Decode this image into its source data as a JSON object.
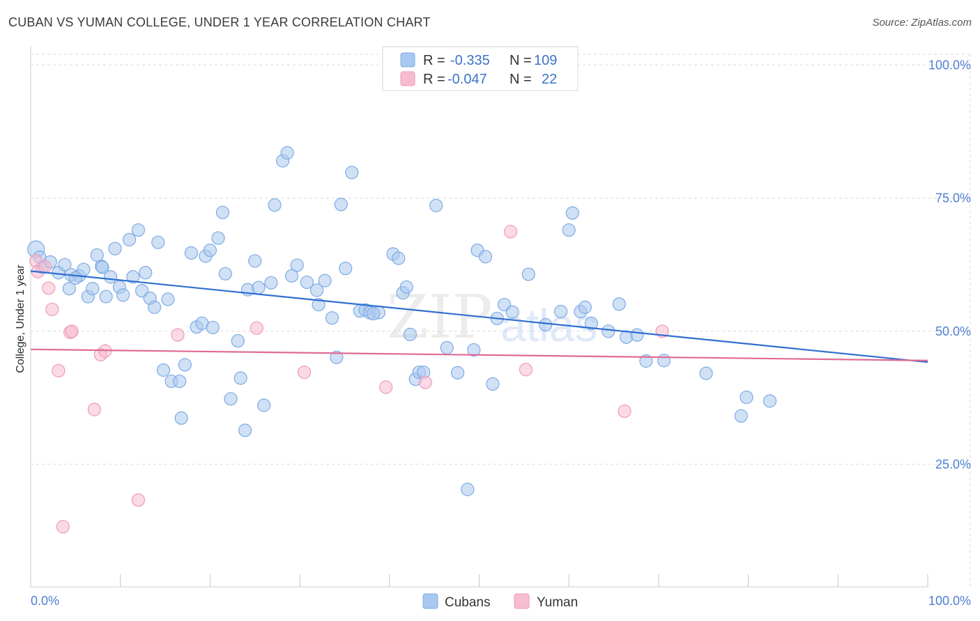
{
  "header": {
    "title": "CUBAN VS YUMAN COLLEGE, UNDER 1 YEAR CORRELATION CHART",
    "source": "Source: ZipAtlas.com"
  },
  "legend": {
    "rows": [
      {
        "r_label": "R =",
        "r_value": "-0.335",
        "n_label": "N =",
        "n_value": "109"
      },
      {
        "r_label": "R =",
        "r_value": "-0.047",
        "n_label": "N =",
        "n_value": "22"
      }
    ],
    "bottom": [
      "Cubans",
      "Yuman"
    ]
  },
  "watermark": {
    "zip": "ZIP",
    "atlas": "atlas"
  },
  "colors": {
    "blue_fill": "#a9c8ef",
    "blue_stroke": "#7eaae3",
    "blue_line": "#2f6fd0",
    "pink_fill": "#f7bcd0",
    "pink_stroke": "#ee9ab8",
    "pink_line": "#e06a94",
    "grid": "#d9d9d9",
    "tick_text": "#4f7fcf"
  },
  "chart_data": {
    "type": "scatter",
    "title": "CUBAN VS YUMAN COLLEGE, UNDER 1 YEAR CORRELATION CHART",
    "xlabel": "",
    "ylabel": "College, Under 1 year",
    "xlim": [
      0,
      100
    ],
    "ylim": [
      2,
      102
    ],
    "x_tick_labels": [
      "0.0%",
      "100.0%"
    ],
    "y_tick_labels": [
      "25.0%",
      "50.0%",
      "75.0%",
      "100.0%"
    ],
    "y_ticks": [
      25,
      50,
      75,
      100
    ],
    "grid": true,
    "series": [
      {
        "name": "Cubans",
        "color": "#a9c8ef",
        "trend": {
          "x": [
            0,
            100
          ],
          "y": [
            61.3,
            44.2
          ]
        },
        "points": [
          [
            0.6,
            65.4
          ],
          [
            1.0,
            63.9
          ],
          [
            1.3,
            62.0
          ],
          [
            2.2,
            63.0
          ],
          [
            3.1,
            61.0
          ],
          [
            3.8,
            62.5
          ],
          [
            4.3,
            58.0
          ],
          [
            4.5,
            60.6
          ],
          [
            5.4,
            60.4
          ],
          [
            5.9,
            61.6
          ],
          [
            6.4,
            56.5
          ],
          [
            6.9,
            58.0
          ],
          [
            7.4,
            64.3
          ],
          [
            7.9,
            62.2
          ],
          [
            8.4,
            56.5
          ],
          [
            8.9,
            60.2
          ],
          [
            9.4,
            65.5
          ],
          [
            9.9,
            58.3
          ],
          [
            10.3,
            56.8
          ],
          [
            11.0,
            67.2
          ],
          [
            11.4,
            60.2
          ],
          [
            12.0,
            69.0
          ],
          [
            12.4,
            57.6
          ],
          [
            12.8,
            61.0
          ],
          [
            13.3,
            56.2
          ],
          [
            13.8,
            54.5
          ],
          [
            14.2,
            66.7
          ],
          [
            14.8,
            42.7
          ],
          [
            15.3,
            56.0
          ],
          [
            15.7,
            40.6
          ],
          [
            16.6,
            40.6
          ],
          [
            16.8,
            33.7
          ],
          [
            17.2,
            43.7
          ],
          [
            17.9,
            64.7
          ],
          [
            18.5,
            50.8
          ],
          [
            19.1,
            51.5
          ],
          [
            19.5,
            64.1
          ],
          [
            20.0,
            65.2
          ],
          [
            20.3,
            50.7
          ],
          [
            20.9,
            67.5
          ],
          [
            21.4,
            72.3
          ],
          [
            21.7,
            60.8
          ],
          [
            22.3,
            37.3
          ],
          [
            23.1,
            48.2
          ],
          [
            23.4,
            41.2
          ],
          [
            23.9,
            31.4
          ],
          [
            24.2,
            57.8
          ],
          [
            25.0,
            63.2
          ],
          [
            25.4,
            58.2
          ],
          [
            26.0,
            36.1
          ],
          [
            26.8,
            59.1
          ],
          [
            27.2,
            73.7
          ],
          [
            28.1,
            82.0
          ],
          [
            28.6,
            83.5
          ],
          [
            29.1,
            60.4
          ],
          [
            29.7,
            62.4
          ],
          [
            30.8,
            59.2
          ],
          [
            31.9,
            57.7
          ],
          [
            32.1,
            55.0
          ],
          [
            32.8,
            59.5
          ],
          [
            33.6,
            52.5
          ],
          [
            34.1,
            45.1
          ],
          [
            34.6,
            73.8
          ],
          [
            35.1,
            61.8
          ],
          [
            35.8,
            79.8
          ],
          [
            36.7,
            53.8
          ],
          [
            37.3,
            54.0
          ],
          [
            37.8,
            53.5
          ],
          [
            38.8,
            53.5
          ],
          [
            40.4,
            64.5
          ],
          [
            41.0,
            63.7
          ],
          [
            41.5,
            57.2
          ],
          [
            41.9,
            58.3
          ],
          [
            42.3,
            49.4
          ],
          [
            42.9,
            41.0
          ],
          [
            43.3,
            42.3
          ],
          [
            43.8,
            42.3
          ],
          [
            45.2,
            73.6
          ],
          [
            46.4,
            46.9
          ],
          [
            47.6,
            42.2
          ],
          [
            48.7,
            20.3
          ],
          [
            49.4,
            46.5
          ],
          [
            49.8,
            65.2
          ],
          [
            50.7,
            64.0
          ],
          [
            51.5,
            40.1
          ],
          [
            52.0,
            52.4
          ],
          [
            52.8,
            55.0
          ],
          [
            53.7,
            53.6
          ],
          [
            55.5,
            60.7
          ],
          [
            57.4,
            51.2
          ],
          [
            59.1,
            53.7
          ],
          [
            60.0,
            69.0
          ],
          [
            60.4,
            72.2
          ],
          [
            61.3,
            53.7
          ],
          [
            61.8,
            54.5
          ],
          [
            62.5,
            51.5
          ],
          [
            64.4,
            50.0
          ],
          [
            65.6,
            55.1
          ],
          [
            66.4,
            48.9
          ],
          [
            67.6,
            49.3
          ],
          [
            68.6,
            44.4
          ],
          [
            70.6,
            44.5
          ],
          [
            75.3,
            42.1
          ],
          [
            79.2,
            34.1
          ],
          [
            79.8,
            37.6
          ],
          [
            82.4,
            36.9
          ],
          [
            38.2,
            53.3
          ],
          [
            8.0,
            62.0
          ],
          [
            5.0,
            60.0
          ]
        ]
      },
      {
        "name": "Yuman",
        "color": "#f7bcd0",
        "trend": {
          "x": [
            0,
            100
          ],
          "y": [
            46.6,
            44.5
          ]
        },
        "points": [
          [
            0.6,
            63.2
          ],
          [
            0.8,
            61.2
          ],
          [
            1.6,
            62.1
          ],
          [
            2.0,
            58.1
          ],
          [
            2.4,
            54.1
          ],
          [
            3.1,
            42.6
          ],
          [
            3.6,
            13.3
          ],
          [
            4.4,
            49.8
          ],
          [
            4.6,
            50.0
          ],
          [
            7.1,
            35.3
          ],
          [
            7.8,
            45.6
          ],
          [
            8.3,
            46.3
          ],
          [
            12.0,
            18.3
          ],
          [
            16.4,
            49.3
          ],
          [
            25.2,
            50.6
          ],
          [
            30.5,
            42.3
          ],
          [
            39.6,
            39.5
          ],
          [
            44.0,
            40.4
          ],
          [
            53.5,
            68.7
          ],
          [
            55.2,
            42.8
          ],
          [
            66.2,
            35.0
          ],
          [
            70.4,
            50.0
          ]
        ]
      }
    ]
  }
}
